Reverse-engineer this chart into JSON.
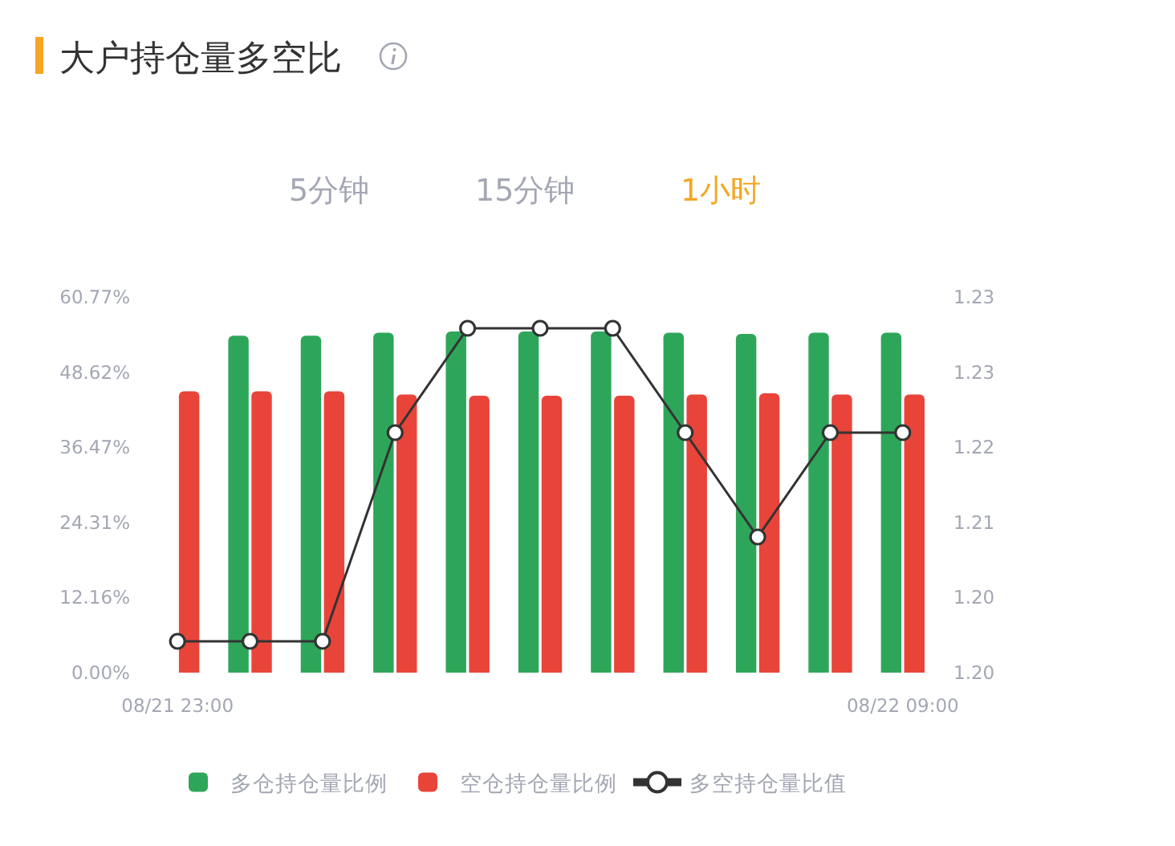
{
  "chart_data": {
    "type": "bar",
    "title": "大户持仓量多空比",
    "annotations": [
      "5分钟",
      "15分钟",
      "1小时"
    ],
    "categories": [
      "08/21 23:00",
      null,
      null,
      null,
      null,
      null,
      null,
      null,
      null,
      null,
      "08/22 09:00"
    ],
    "series": [
      {
        "name": "多仓持仓量比例",
        "color": "#2ea65a",
        "values": [
          null,
          54.5,
          54.5,
          55.0,
          55.2,
          55.2,
          55.2,
          55.0,
          54.8,
          55.0,
          55.0
        ]
      },
      {
        "name": "空仓持仓量比例",
        "color": "#e9443a",
        "values": [
          45.5,
          45.5,
          45.5,
          45.0,
          44.8,
          44.8,
          44.8,
          45.0,
          45.2,
          45.0,
          45.0
        ]
      },
      {
        "name": "多空持仓量比值",
        "type": "line",
        "axis": "y2",
        "marker": "circle",
        "color": "#333333",
        "values": [
          1.2,
          1.2,
          1.2,
          1.22,
          1.23,
          1.23,
          1.23,
          1.22,
          1.21,
          1.22,
          1.22
        ]
      }
    ],
    "ylim": [
      0,
      60.77
    ],
    "yticks": [
      {
        "value": 0,
        "label": "0.00%"
      },
      {
        "value": 12.16,
        "label": "12.16%"
      },
      {
        "value": 24.31,
        "label": "24.31%"
      },
      {
        "value": 36.47,
        "label": "36.47%"
      },
      {
        "value": 48.62,
        "label": "48.62%"
      },
      {
        "value": 60.77,
        "label": "60.77%"
      }
    ],
    "y2lim": [
      1.197,
      1.233
    ],
    "y2ticks": [
      {
        "value": 1.197,
        "label": "1.20"
      },
      {
        "value": 1.2042,
        "label": "1.20"
      },
      {
        "value": 1.2114,
        "label": "1.21"
      },
      {
        "value": 1.2186,
        "label": "1.22"
      },
      {
        "value": 1.2258,
        "label": "1.23"
      },
      {
        "value": 1.233,
        "label": "1.23"
      }
    ],
    "legend": "bottom",
    "grid": false
  }
}
